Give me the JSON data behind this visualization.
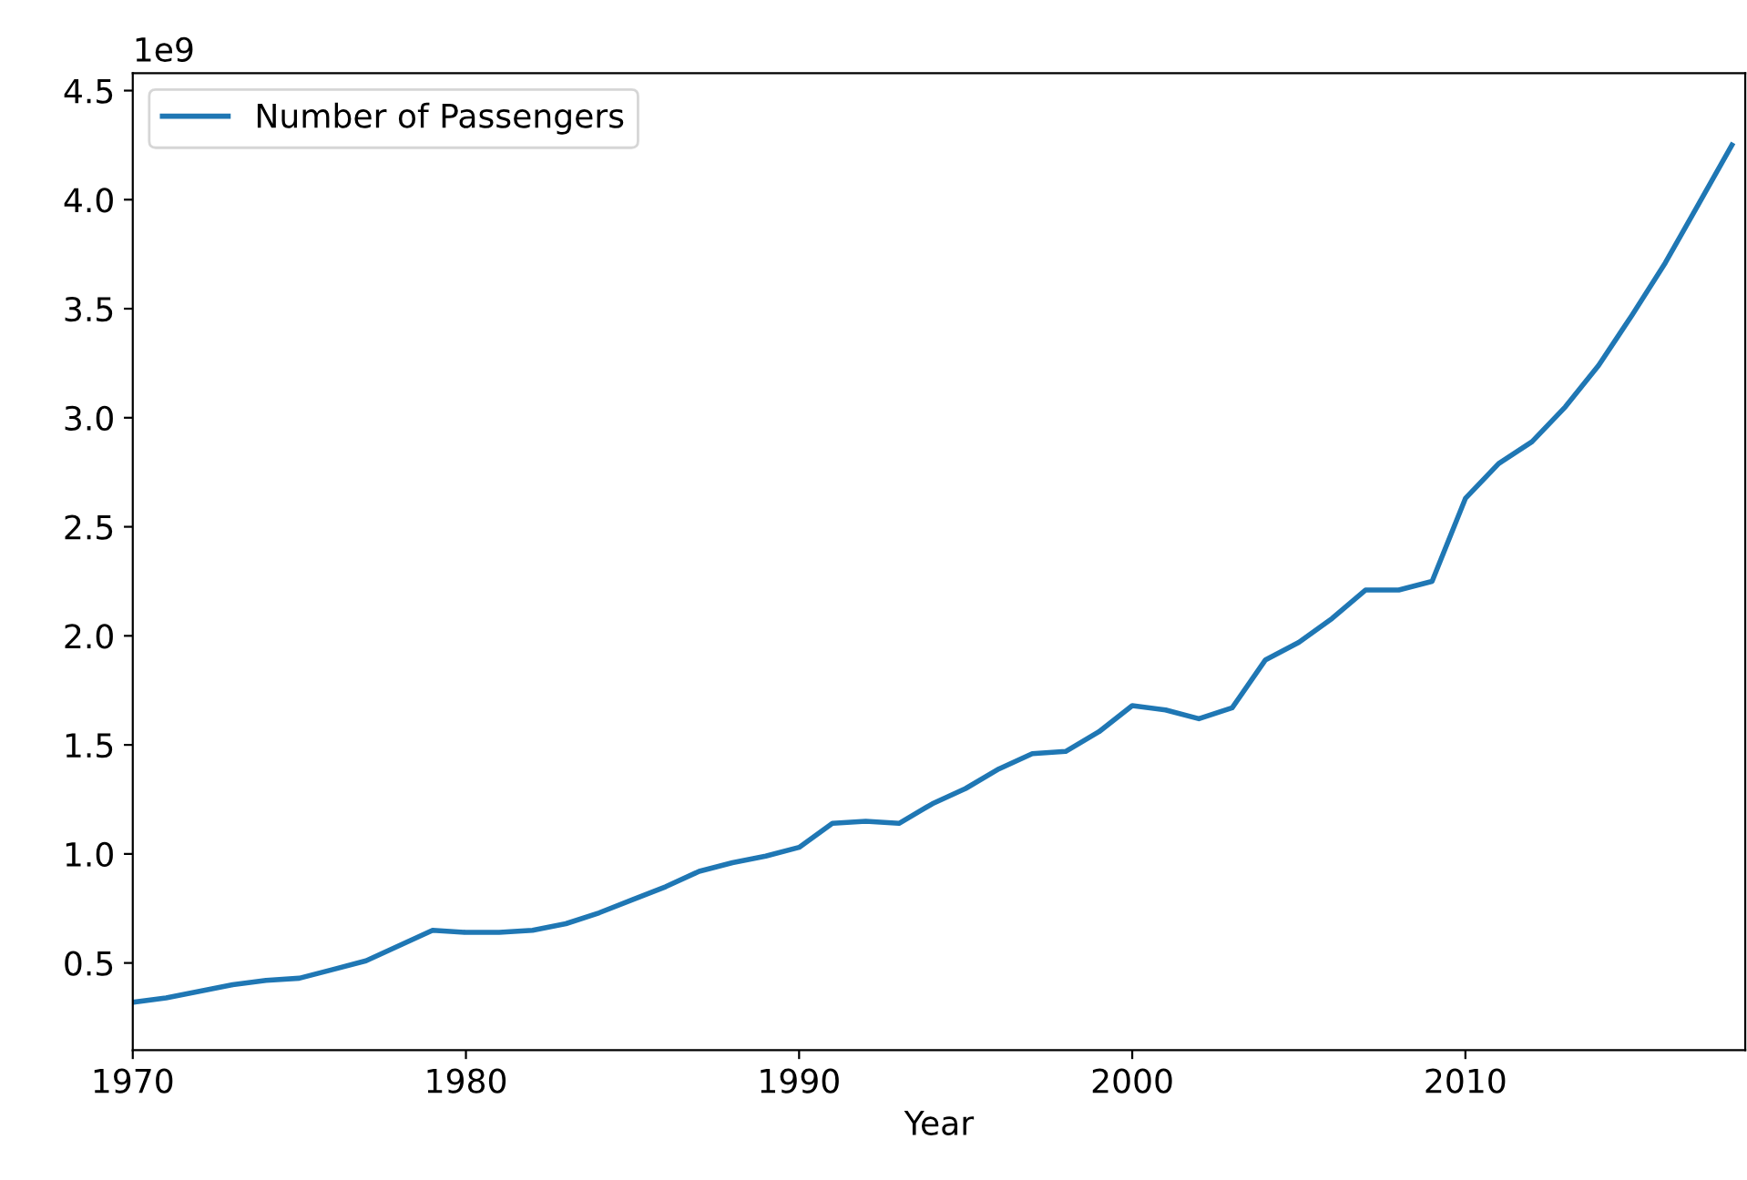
{
  "chart_data": {
    "type": "line",
    "xlabel": "Year",
    "annotations": [
      "1e9"
    ],
    "x": [
      1970,
      1971,
      1972,
      1973,
      1974,
      1975,
      1976,
      1977,
      1978,
      1979,
      1980,
      1981,
      1982,
      1983,
      1984,
      1985,
      1986,
      1987,
      1988,
      1989,
      1990,
      1991,
      1992,
      1993,
      1994,
      1995,
      1996,
      1997,
      1998,
      1999,
      2000,
      2001,
      2002,
      2003,
      2004,
      2005,
      2006,
      2007,
      2008,
      2009,
      2010,
      2011,
      2012,
      2013,
      2014,
      2015,
      2016,
      2017,
      2018
    ],
    "series": [
      {
        "name": "Number of Passengers",
        "color": "#1f77b4",
        "values": [
          0.32,
          0.34,
          0.37,
          0.4,
          0.42,
          0.43,
          0.47,
          0.51,
          0.58,
          0.65,
          0.64,
          0.64,
          0.65,
          0.68,
          0.73,
          0.79,
          0.85,
          0.92,
          0.96,
          0.99,
          1.03,
          1.14,
          1.15,
          1.14,
          1.23,
          1.3,
          1.39,
          1.46,
          1.47,
          1.56,
          1.68,
          1.66,
          1.62,
          1.67,
          1.89,
          1.97,
          2.08,
          2.21,
          2.21,
          2.25,
          2.63,
          2.79,
          2.89,
          3.05,
          3.24,
          3.47,
          3.71,
          3.98,
          4.25
        ]
      }
    ],
    "xlim": [
      1970,
      2018.4
    ],
    "xticks": [
      1970,
      1980,
      1990,
      2000,
      2010
    ],
    "ylim": [
      0.1,
      4.58
    ],
    "yticks": [
      0.5,
      {
        "value": 1,
        "label": "1.0"
      },
      1.5,
      {
        "value": 2,
        "label": "2.0"
      },
      2.5,
      {
        "value": 3,
        "label": "3.0"
      },
      3.5,
      {
        "value": 4,
        "label": "4.0"
      },
      4.5
    ],
    "legend": "top left",
    "grid": false,
    "marker": "none",
    "line_style": "solid"
  }
}
